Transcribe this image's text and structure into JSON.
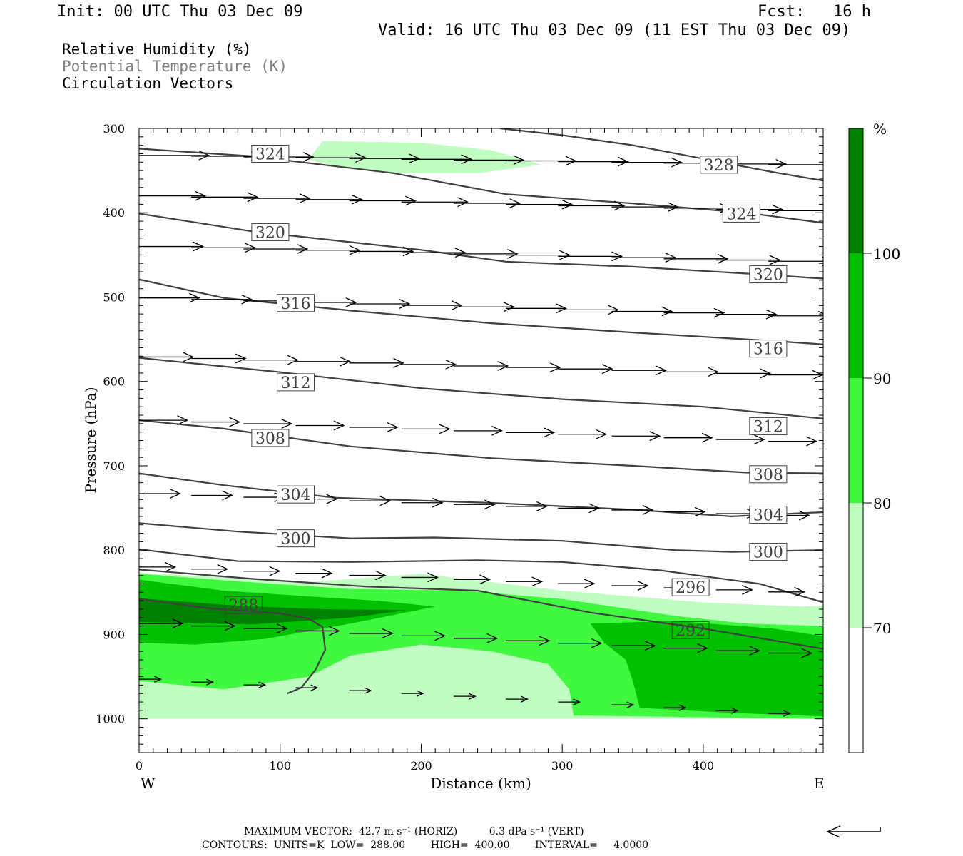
{
  "header": {
    "init": "Init: 00 UTC Thu 03 Dec 09",
    "fcst": "Fcst:   16 h",
    "valid": "Valid: 16 UTC Thu 03 Dec 09 (11 EST Thu 03 Dec 09)"
  },
  "legend": {
    "rh": "Relative Humidity (%)",
    "theta": "Potential Temperature (K)",
    "vectors": "Circulation Vectors"
  },
  "footer": {
    "max_vector": "MAXIMUM VECTOR:  42.7 m s⁻¹ (HORIZ)          6.3 dPa s⁻¹ (VERT)",
    "contours": "CONTOURS:  UNITS=K  LOW=  288.00        HIGH=  400.00        INTERVAL=     4.0000"
  },
  "colors": {
    "rh_70": "#c0fdc0",
    "rh_80": "#40f840",
    "rh_90": "#00c000",
    "rh_100": "#008000",
    "contour": "#404040",
    "frame": "#000000"
  },
  "chart_data": {
    "type": "cross-section",
    "xlabel": "Distance (km)",
    "ylabel": "Pressure (hPa)",
    "xlim": [
      0,
      485
    ],
    "ylim": [
      1040,
      300
    ],
    "y_log": false,
    "x_ticks": [
      0,
      100,
      200,
      300,
      400
    ],
    "y_ticks": [
      300,
      400,
      500,
      600,
      700,
      800,
      900,
      1000
    ],
    "x_end_labels": {
      "left": "W",
      "right": "E"
    },
    "colorbar": {
      "unit": "%",
      "levels": [
        70,
        80,
        90,
        100
      ],
      "colors": [
        "#ffffff",
        "#c0fdc0",
        "#40f840",
        "#00c000",
        "#008000"
      ]
    },
    "rh_fill": [
      {
        "level": 70,
        "polygons": [
          [
            [
              0,
              827
            ],
            [
              60,
              832
            ],
            [
              120,
              838
            ],
            [
              200,
              828
            ],
            [
              300,
              848
            ],
            [
              400,
              862
            ],
            [
              470,
              867
            ],
            [
              485,
              866
            ],
            [
              485,
              1000
            ],
            [
              150,
              1000
            ],
            [
              0,
              1000
            ]
          ],
          [
            [
              120,
              337
            ],
            [
              130,
              315
            ],
            [
              200,
              317
            ],
            [
              250,
              326
            ],
            [
              285,
              343
            ],
            [
              240,
              353
            ],
            [
              180,
              353
            ],
            [
              140,
              345
            ]
          ]
        ]
      },
      {
        "level": 80,
        "polygons": [
          [
            [
              0,
              828
            ],
            [
              70,
              837
            ],
            [
              150,
              846
            ],
            [
              230,
              848
            ],
            [
              300,
              858
            ],
            [
              380,
              878
            ],
            [
              430,
              887
            ],
            [
              485,
              890
            ],
            [
              485,
              1000
            ],
            [
              308,
              996
            ],
            [
              305,
              965
            ],
            [
              290,
              935
            ],
            [
              250,
              920
            ],
            [
              200,
              912
            ],
            [
              150,
              925
            ],
            [
              120,
              950
            ],
            [
              60,
              965
            ],
            [
              0,
              955
            ]
          ]
        ]
      },
      {
        "level": 90,
        "polygons": [
          [
            [
              0,
              835
            ],
            [
              60,
              848
            ],
            [
              130,
              856
            ],
            [
              170,
              860
            ],
            [
              210,
              867
            ],
            [
              150,
              887
            ],
            [
              90,
              905
            ],
            [
              40,
              912
            ],
            [
              0,
              910
            ]
          ],
          [
            [
              320,
              887
            ],
            [
              380,
              884
            ],
            [
              450,
              893
            ],
            [
              485,
              902
            ],
            [
              485,
              997
            ],
            [
              420,
              993
            ],
            [
              355,
              987
            ],
            [
              350,
              955
            ],
            [
              345,
              930
            ],
            [
              330,
              910
            ]
          ]
        ]
      },
      {
        "level": 100,
        "polygons": [
          [
            [
              0,
              857
            ],
            [
              70,
              866
            ],
            [
              130,
              870
            ],
            [
              190,
              871
            ],
            [
              150,
              880
            ],
            [
              80,
              888
            ],
            [
              0,
              885
            ]
          ]
        ]
      }
    ],
    "theta_contours": [
      {
        "value": 288,
        "points": [
          [
            0,
            858
          ],
          [
            50,
            869
          ],
          [
            100,
            875
          ],
          [
            120,
            881
          ],
          [
            130,
            891
          ],
          [
            132,
            918
          ],
          [
            125,
            942
          ],
          [
            115,
            963
          ],
          [
            105,
            970
          ]
        ]
      },
      {
        "value": 292,
        "points": [
          [
            0,
            823
          ],
          [
            80,
            834
          ],
          [
            160,
            843
          ],
          [
            240,
            848
          ],
          [
            320,
            874
          ],
          [
            400,
            893
          ],
          [
            485,
            917
          ]
        ]
      },
      {
        "value": 296,
        "points": [
          [
            0,
            799
          ],
          [
            70,
            813
          ],
          [
            150,
            814
          ],
          [
            240,
            812
          ],
          [
            300,
            814
          ],
          [
            370,
            824
          ],
          [
            440,
            840
          ],
          [
            485,
            862
          ]
        ]
      },
      {
        "value": 300,
        "points": [
          [
            0,
            768
          ],
          [
            70,
            778
          ],
          [
            150,
            786
          ],
          [
            210,
            785
          ],
          [
            300,
            789
          ],
          [
            380,
            800
          ],
          [
            420,
            802
          ],
          [
            485,
            800
          ]
        ]
      },
      {
        "value": 304,
        "points": [
          [
            0,
            709
          ],
          [
            60,
            723
          ],
          [
            140,
            738
          ],
          [
            250,
            744
          ],
          [
            350,
            752
          ],
          [
            420,
            760
          ],
          [
            485,
            755
          ]
        ]
      },
      {
        "value": 308,
        "points": [
          [
            0,
            646
          ],
          [
            60,
            656
          ],
          [
            150,
            677
          ],
          [
            250,
            691
          ],
          [
            350,
            700
          ],
          [
            430,
            708
          ],
          [
            485,
            709
          ]
        ]
      },
      {
        "value": 312,
        "points": [
          [
            0,
            572
          ],
          [
            100,
            589
          ],
          [
            200,
            608
          ],
          [
            300,
            621
          ],
          [
            400,
            630
          ],
          [
            485,
            644
          ]
        ]
      },
      {
        "value": 316,
        "points": [
          [
            0,
            479
          ],
          [
            60,
            501
          ],
          [
            150,
            516
          ],
          [
            250,
            531
          ],
          [
            350,
            542
          ],
          [
            450,
            552
          ],
          [
            485,
            556
          ]
        ]
      },
      {
        "value": 320,
        "points": [
          [
            0,
            401
          ],
          [
            80,
            422
          ],
          [
            200,
            444
          ],
          [
            260,
            458
          ],
          [
            350,
            464
          ],
          [
            430,
            472
          ],
          [
            485,
            478
          ]
        ]
      },
      {
        "value": 324,
        "points": [
          [
            0,
            324
          ],
          [
            80,
            333
          ],
          [
            180,
            353
          ],
          [
            260,
            378
          ],
          [
            350,
            389
          ],
          [
            430,
            400
          ],
          [
            485,
            412
          ]
        ]
      },
      {
        "value": 328,
        "points": [
          [
            256,
            300
          ],
          [
            300,
            308
          ],
          [
            350,
            320
          ],
          [
            400,
            336
          ],
          [
            450,
            352
          ],
          [
            485,
            362
          ]
        ]
      }
    ],
    "contour_labels": [
      {
        "text": "324",
        "x": 93,
        "y": 330
      },
      {
        "text": "328",
        "x": 411,
        "y": 343
      },
      {
        "text": "324",
        "x": 427,
        "y": 401
      },
      {
        "text": "320",
        "x": 93,
        "y": 423
      },
      {
        "text": "320",
        "x": 446,
        "y": 473
      },
      {
        "text": "316",
        "x": 111,
        "y": 507
      },
      {
        "text": "316",
        "x": 446,
        "y": 561
      },
      {
        "text": "312",
        "x": 111,
        "y": 601
      },
      {
        "text": "312",
        "x": 446,
        "y": 653
      },
      {
        "text": "308",
        "x": 93,
        "y": 667
      },
      {
        "text": "308",
        "x": 446,
        "y": 710
      },
      {
        "text": "304",
        "x": 111,
        "y": 734
      },
      {
        "text": "304",
        "x": 446,
        "y": 758
      },
      {
        "text": "300",
        "x": 111,
        "y": 786
      },
      {
        "text": "300",
        "x": 446,
        "y": 802
      },
      {
        "text": "296",
        "x": 391,
        "y": 844
      },
      {
        "text": "292",
        "x": 391,
        "y": 895
      },
      {
        "text": "288",
        "x": 74,
        "y": 865
      }
    ],
    "vector_rows": [
      {
        "p_left": 332,
        "p_right": 344,
        "u": 58,
        "w": 0
      },
      {
        "p_left": 380,
        "p_right": 399,
        "u": 55,
        "w": 0
      },
      {
        "p_left": 440,
        "p_right": 459,
        "u": 53,
        "w": 0
      },
      {
        "p_left": 501,
        "p_right": 524,
        "u": 50,
        "w": 0
      },
      {
        "p_left": 571,
        "p_right": 594,
        "u": 45,
        "w": 0
      },
      {
        "p_left": 646,
        "p_right": 673,
        "u": 40,
        "w": 0
      },
      {
        "p_left": 733,
        "p_right": 761,
        "u": 34,
        "w": 0
      },
      {
        "p_left": 820,
        "p_right": 852,
        "u": 30,
        "w": 0
      },
      {
        "p_left": 887,
        "p_right": 925,
        "u": 36,
        "w": 0
      },
      {
        "p_left": 953,
        "p_right": 997,
        "u": 18,
        "w": 0
      }
    ],
    "vector_x_positions": [
      0,
      37,
      74,
      111,
      149,
      186,
      223,
      260,
      297,
      335,
      372,
      409,
      446,
      483
    ],
    "reference_vector": {
      "u": 42.7,
      "w": 6.3
    }
  }
}
